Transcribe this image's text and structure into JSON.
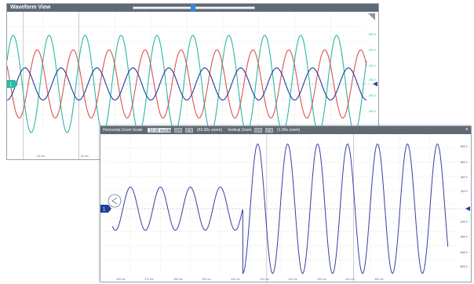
{
  "window1": {
    "title": "Waveform View",
    "chart_data": {
      "type": "line",
      "xlim": [
        -5,
        5
      ],
      "ylim": [
        -1.2,
        1.2
      ],
      "right_tick_labels": [
        "800 V",
        "600 V",
        "400 V",
        "200 V",
        "-200 V",
        "-400 V",
        "-600 V"
      ],
      "bottom_tick_labels": [
        "-40 ms",
        "-30 ms"
      ],
      "series": [
        {
          "color": "#2bb8a3",
          "amplitude": 1.0,
          "period": 1.0,
          "phase": 0.08
        },
        {
          "color": "#d9534f",
          "amplitude": 0.7,
          "period": 1.0,
          "phase": 0.41
        },
        {
          "color": "#1c3f99",
          "amplitude": 0.33,
          "period": 1.0,
          "phase": 0.75
        }
      ],
      "cursors": [
        -4.55,
        -3.0
      ]
    },
    "marker_label": "1"
  },
  "window2": {
    "controls": {
      "horizontal_zoom_label": "Horizontal Zoom Scale",
      "horizontal_zoom_value": "10.00 ms/div",
      "horizontal_zoom_btn_minus": "-",
      "horizontal_zoom_btn_plus": "+",
      "horizontal_zoom_factor": "(60.00x zoom)",
      "vertical_zoom_label": "Vertical Zoom",
      "vertical_zoom_btn_minus": "-",
      "vertical_zoom_btn_plus": "+",
      "vertical_zoom_factor": "(1.00x zoom)",
      "close_label": "×"
    },
    "chart_data": {
      "type": "line",
      "xlim": [
        365,
        605
      ],
      "ylim": [
        -900,
        900
      ],
      "x_tick_labels": [
        "360 ms",
        "370 ms",
        "380 ms",
        "390 ms",
        "400 ms",
        "410 ms",
        "420 ms",
        "430 ms",
        "440 ms",
        "450 ms"
      ],
      "y_tick_labels": [
        "800 V",
        "600 V",
        "400 V",
        "200 V",
        "-200 V",
        "-400 V",
        "-600 V",
        "-800 V"
      ],
      "series": [
        {
          "color": "#3a3fa3",
          "pre_amplitude": 150,
          "post_amplitude": 450,
          "period": 20,
          "jump_at": 460
        }
      ],
      "cursors": [
        476,
        534
      ]
    },
    "marker_label": "1"
  }
}
